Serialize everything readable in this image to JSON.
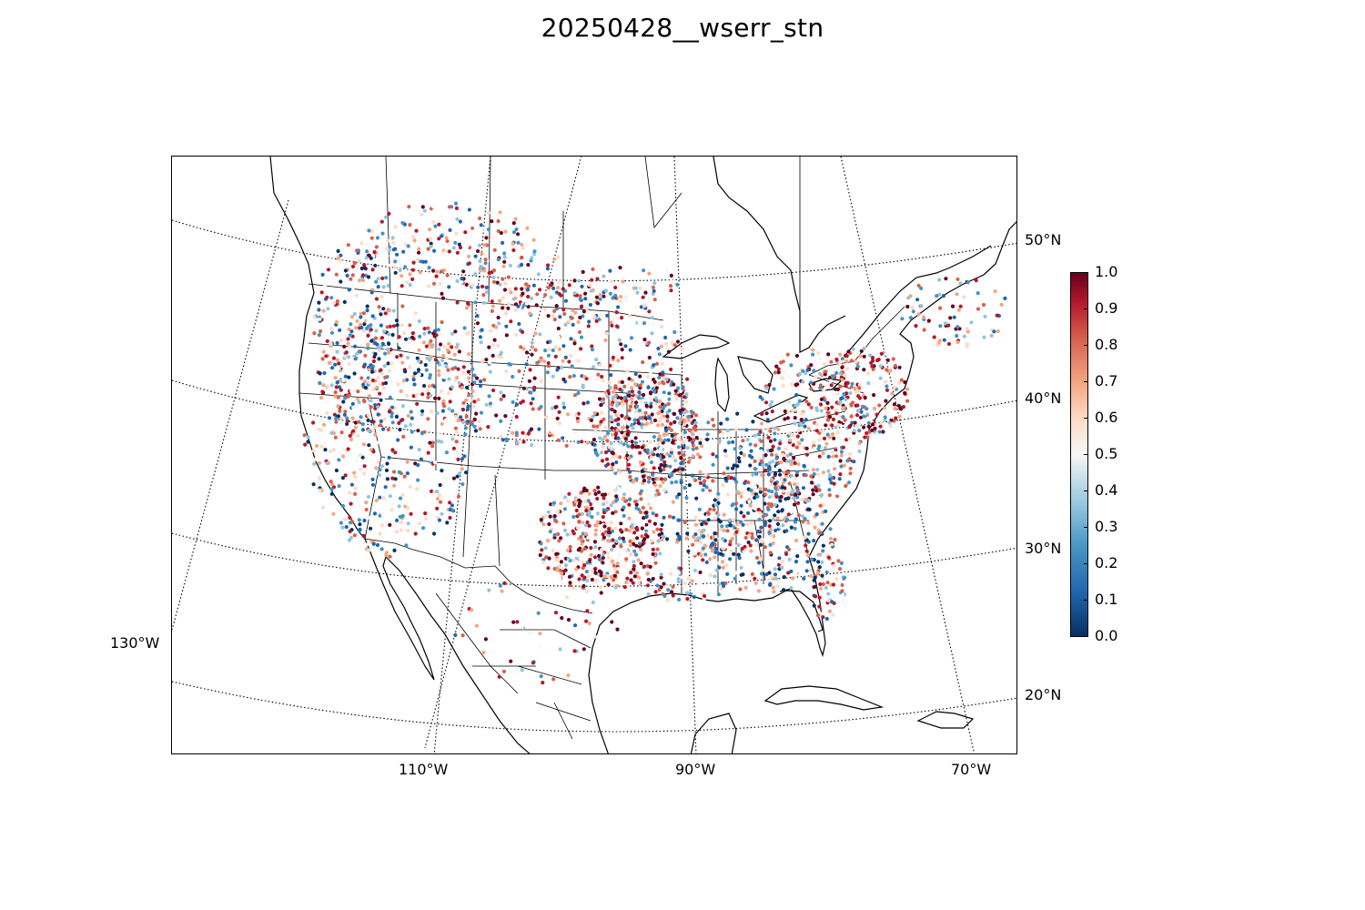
{
  "title": "20250428__wserr_stn",
  "map": {
    "lat_labels": [
      "50°N",
      "40°N",
      "30°N",
      "20°N"
    ],
    "lon_labels": [
      "130°W",
      "110°W",
      "90°W",
      "70°W"
    ],
    "value_range": [
      0.0,
      1.0
    ],
    "colormap_colors": [
      "#053061",
      "#2166ac",
      "#4393c3",
      "#92c5de",
      "#f7f7f7",
      "#fddbc7",
      "#f4a582",
      "#d6604d",
      "#b2182b",
      "#67001f"
    ],
    "line_color": "#000000"
  },
  "colorbar": {
    "ticks": [
      "1.0",
      "0.9",
      "0.8",
      "0.7",
      "0.6",
      "0.5",
      "0.4",
      "0.3",
      "0.2",
      "0.1",
      "0.0"
    ]
  }
}
